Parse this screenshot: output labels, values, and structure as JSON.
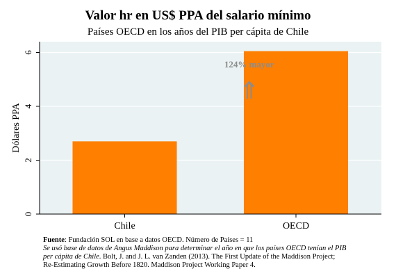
{
  "chart_data": {
    "type": "bar",
    "title": "Valor hr en US$ PPA del salario mínimo",
    "subtitle": "Países OECD en los años del PIB per cápita de Chile",
    "categories": [
      "Chile",
      "OECD"
    ],
    "values": [
      2.7,
      6.05
    ],
    "ylabel": "Dólares PPA",
    "xlabel": "",
    "ylim": [
      0,
      6.4
    ],
    "yticks": [
      "0",
      "2",
      "4",
      "6"
    ],
    "grid": true,
    "bar_color": "#ff7f00",
    "plot_background": "#eaf2f3",
    "annotation": "124% mayor",
    "annotation_arrow": "⇑",
    "annotation_color": "#8c8c8c"
  },
  "notes": {
    "source_label": "Fuente",
    "source_text": ": Fundación SOL en base a datos OECD. Número de Países = 11",
    "line2": "Se usó base de datos de Angus Maddison para determinar el año en que los países OECD tenían el PIB",
    "line3_italic": "per cápita de Chile",
    "line3_rest": ". Bolt, J. and J. L. van Zanden (2013). The First Update of the Maddison Project;",
    "line4": "Re-Estimating Growth Before 1820. Maddison Project Working Paper 4."
  }
}
